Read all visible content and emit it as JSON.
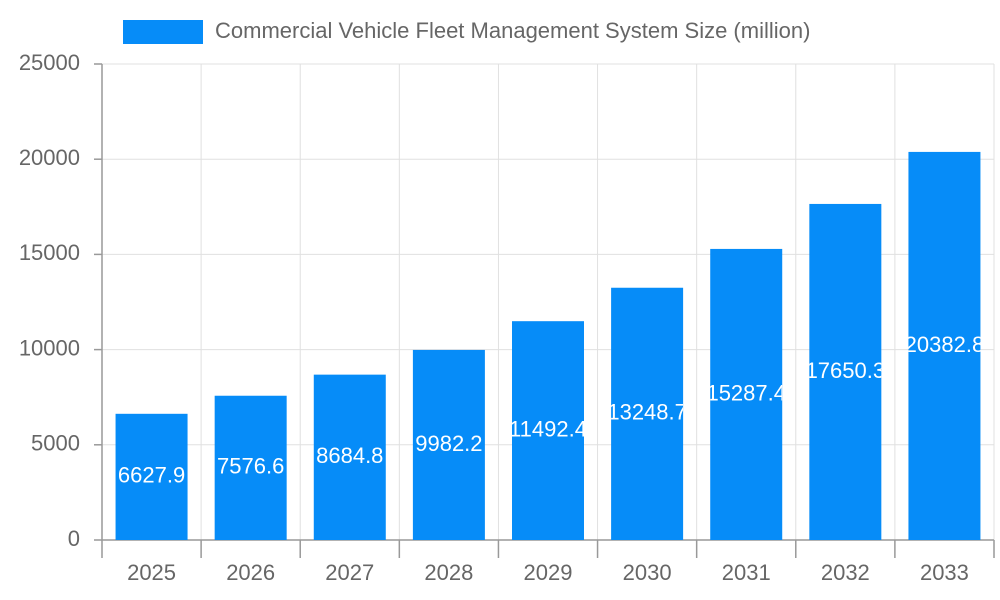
{
  "chart_data": {
    "type": "bar",
    "categories": [
      "2025",
      "2026",
      "2027",
      "2028",
      "2029",
      "2030",
      "2031",
      "2032",
      "2033"
    ],
    "series": [
      {
        "name": "Commercial Vehicle Fleet Management System Size (million)",
        "color": "#068cf8",
        "values": [
          6627.9,
          7576.6,
          8684.8,
          9982.2,
          11492.4,
          13248.7,
          15287.4,
          17650.3,
          20382.8
        ]
      }
    ],
    "ylim": [
      0,
      25000
    ],
    "yticks": [
      0,
      5000,
      10000,
      15000,
      20000,
      25000
    ],
    "grid": true
  }
}
